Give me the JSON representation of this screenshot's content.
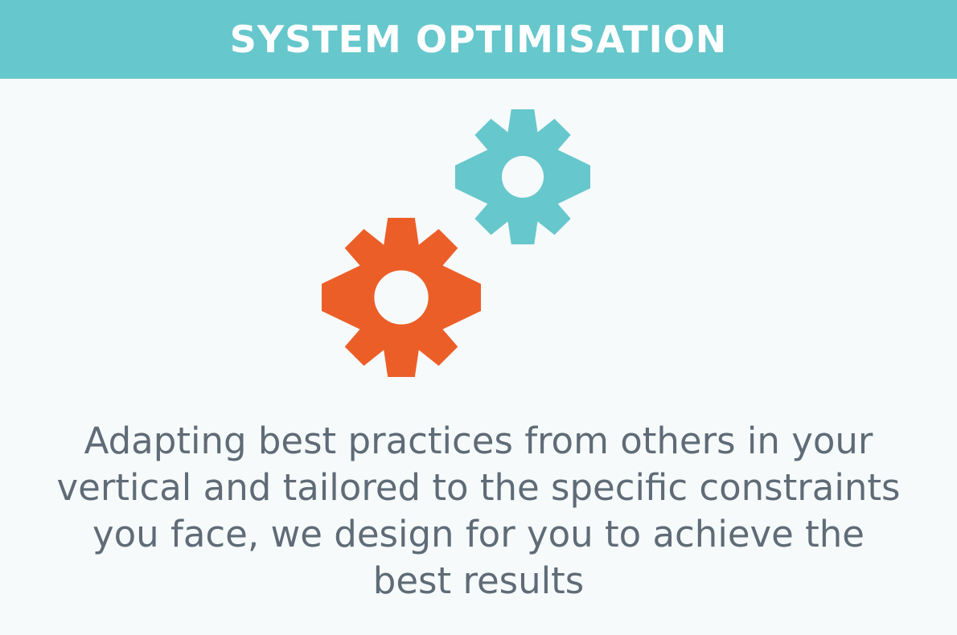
{
  "header": {
    "title": "SYSTEM OPTIMISATION"
  },
  "icons": {
    "small_gear": "gear-icon",
    "large_gear": "gear-icon"
  },
  "colors": {
    "accent_teal": "#66c7cc",
    "accent_orange": "#ec5e28",
    "text_gray": "#5f6b76",
    "background": "#f6fafb"
  },
  "body": {
    "description": "Adapting best practices from others in your vertical and tailored to the specific constraints you face, we design for you to achieve the best results"
  }
}
